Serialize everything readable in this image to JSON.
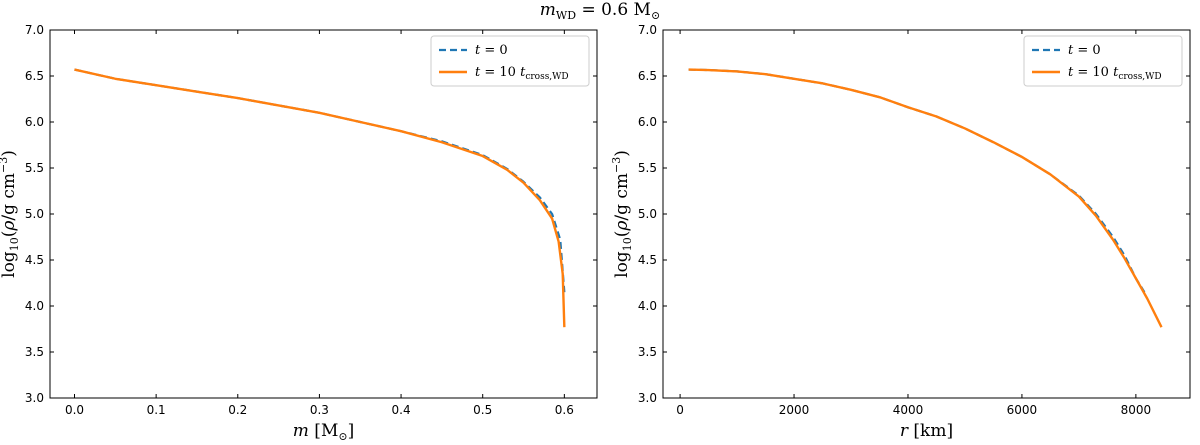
{
  "figure": {
    "suptitle": "m_WD = 0.6 M⊙",
    "suptitle_parts": {
      "main": "m",
      "sub": "WD",
      "rest": " = 0.6 M",
      "sym": "⊙"
    }
  },
  "colors": {
    "t0": "#1f77b4",
    "t10": "#ff7f0e"
  },
  "chart_data": [
    {
      "type": "line",
      "xlabel": "m [M⊙]",
      "ylabel": "log10(ρ/g cm^-3)",
      "xlim": [
        -0.03,
        0.64
      ],
      "ylim": [
        3.0,
        7.0
      ],
      "xticks": [
        0.0,
        0.1,
        0.2,
        0.3,
        0.4,
        0.5,
        0.6
      ],
      "xtick_labels": [
        "0.0",
        "0.1",
        "0.2",
        "0.3",
        "0.4",
        "0.5",
        "0.6"
      ],
      "yticks": [
        3.0,
        3.5,
        4.0,
        4.5,
        5.0,
        5.5,
        6.0,
        6.5,
        7.0
      ],
      "ytick_labels": [
        "3.0",
        "3.5",
        "4.0",
        "4.5",
        "5.0",
        "5.5",
        "6.0",
        "6.5",
        "7.0"
      ],
      "legend_position": "top-right",
      "series": [
        {
          "name": "t = 0",
          "style": "dashed",
          "x": [
            0.0,
            0.05,
            0.1,
            0.15,
            0.2,
            0.25,
            0.3,
            0.35,
            0.4,
            0.45,
            0.5,
            0.53,
            0.55,
            0.57,
            0.585,
            0.595,
            0.6
          ],
          "y": [
            6.57,
            6.47,
            6.4,
            6.33,
            6.26,
            6.18,
            6.1,
            6.0,
            5.9,
            5.79,
            5.64,
            5.49,
            5.35,
            5.18,
            5.0,
            4.72,
            4.15
          ]
        },
        {
          "name": "t = 10 t_cross,WD",
          "style": "solid",
          "x": [
            0.0,
            0.05,
            0.1,
            0.15,
            0.2,
            0.25,
            0.3,
            0.35,
            0.4,
            0.45,
            0.5,
            0.53,
            0.55,
            0.57,
            0.585,
            0.593,
            0.598,
            0.6
          ],
          "y": [
            6.57,
            6.47,
            6.4,
            6.33,
            6.26,
            6.18,
            6.1,
            6.0,
            5.9,
            5.78,
            5.63,
            5.48,
            5.34,
            5.15,
            4.95,
            4.7,
            4.35,
            3.77
          ]
        }
      ]
    },
    {
      "type": "line",
      "xlabel": "r [km]",
      "ylabel": "log10(ρ/g cm^-3)",
      "xlim": [
        -300,
        8950
      ],
      "ylim": [
        3.0,
        7.0
      ],
      "xticks": [
        0,
        2000,
        4000,
        6000,
        8000
      ],
      "xtick_labels": [
        "0",
        "2000",
        "4000",
        "6000",
        "8000"
      ],
      "yticks": [
        3.0,
        3.5,
        4.0,
        4.5,
        5.0,
        5.5,
        6.0,
        6.5,
        7.0
      ],
      "ytick_labels": [
        "3.0",
        "3.5",
        "4.0",
        "4.5",
        "5.0",
        "5.5",
        "6.0",
        "6.5",
        "7.0"
      ],
      "legend_position": "top-right",
      "series": [
        {
          "name": "t = 0",
          "style": "dashed",
          "x": [
            150,
            500,
            1000,
            1500,
            2000,
            2500,
            3000,
            3500,
            4000,
            4500,
            5000,
            5500,
            6000,
            6500,
            7000,
            7300,
            7600,
            7800,
            8000,
            8150
          ],
          "y": [
            6.57,
            6.565,
            6.55,
            6.52,
            6.47,
            6.42,
            6.35,
            6.27,
            6.16,
            6.06,
            5.93,
            5.78,
            5.62,
            5.43,
            5.2,
            5.0,
            4.75,
            4.55,
            4.3,
            4.15
          ]
        },
        {
          "name": "t = 10 t_cross,WD",
          "style": "solid",
          "x": [
            150,
            500,
            1000,
            1500,
            2000,
            2500,
            3000,
            3500,
            4000,
            4500,
            5000,
            5500,
            6000,
            6500,
            7000,
            7300,
            7600,
            7800,
            8000,
            8200,
            8450
          ],
          "y": [
            6.57,
            6.565,
            6.55,
            6.52,
            6.47,
            6.42,
            6.35,
            6.27,
            6.16,
            6.06,
            5.93,
            5.78,
            5.62,
            5.43,
            5.19,
            4.98,
            4.72,
            4.52,
            4.3,
            4.08,
            3.77
          ]
        }
      ]
    }
  ]
}
